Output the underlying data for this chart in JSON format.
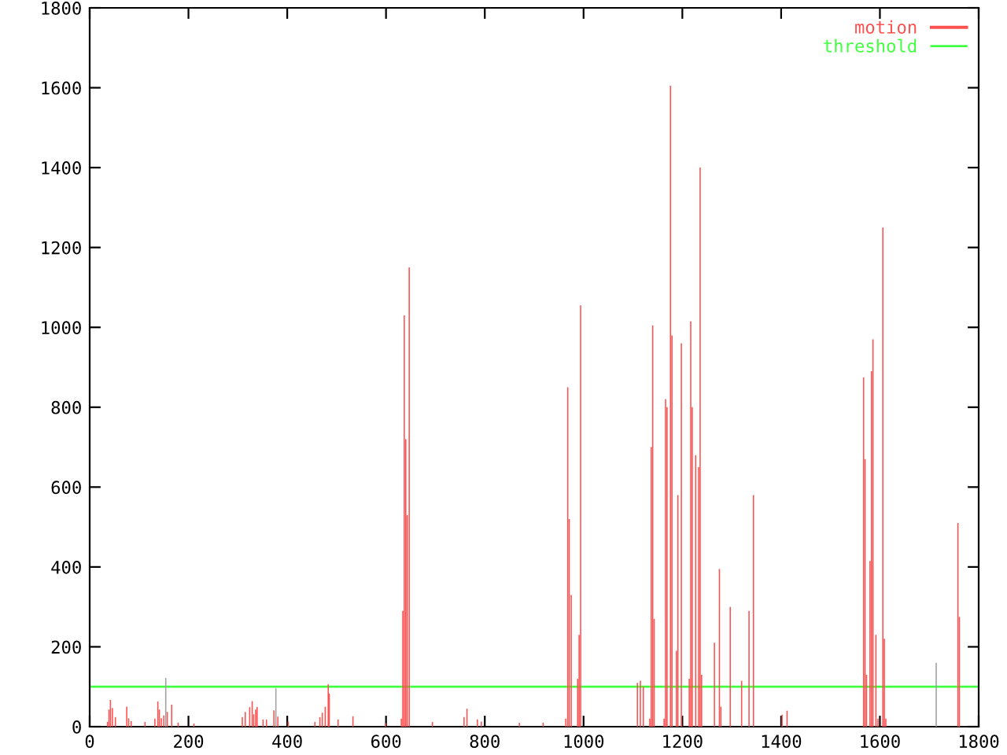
{
  "chart_data": {
    "type": "bar",
    "xlim": [
      0,
      1800
    ],
    "ylim": [
      0,
      1800
    ],
    "xticks": [
      0,
      200,
      400,
      600,
      800,
      1000,
      1200,
      1400,
      1600,
      1800
    ],
    "yticks": [
      0,
      200,
      400,
      600,
      800,
      1000,
      1200,
      1400,
      1600,
      1800
    ],
    "grid": false,
    "legend": "top right",
    "series": [
      {
        "name": "motion",
        "color": "#ff5050",
        "x": [
          36,
          39,
          42,
          46,
          52,
          75,
          79,
          84,
          112,
          132,
          138,
          141,
          145,
          150,
          157,
          166,
          179,
          211,
          309,
          315,
          324,
          329,
          332,
          336,
          339,
          351,
          358,
          373,
          381,
          402,
          456,
          466,
          471,
          477,
          483,
          485,
          503,
          533,
          599,
          631,
          634,
          637,
          640,
          643,
          647,
          694,
          758,
          764,
          785,
          793,
          870,
          918,
          964,
          968,
          971,
          975,
          988,
          991,
          994,
          1109,
          1115,
          1121,
          1134,
          1137,
          1140,
          1143,
          1163,
          1166,
          1169,
          1176,
          1179,
          1188,
          1191,
          1198,
          1214,
          1217,
          1220,
          1227,
          1233,
          1236,
          1239,
          1265,
          1275,
          1278,
          1297,
          1320,
          1335,
          1344,
          1402,
          1412,
          1567,
          1570,
          1573,
          1580,
          1583,
          1586,
          1592,
          1596,
          1606,
          1609,
          1612,
          1758,
          1761
        ],
        "values": [
          12,
          43,
          67,
          47,
          24,
          50,
          21,
          14,
          12,
          20,
          63,
          43,
          21,
          28,
          37,
          55,
          10,
          8,
          24,
          37,
          49,
          64,
          31,
          43,
          49,
          18,
          18,
          41,
          25,
          13,
          12,
          24,
          35,
          50,
          106,
          83,
          18,
          26,
          9,
          20,
          290,
          1030,
          720,
          530,
          1150,
          12,
          24,
          45,
          18,
          13,
          10,
          10,
          20,
          850,
          520,
          330,
          120,
          230,
          1055,
          110,
          115,
          100,
          20,
          700,
          1005,
          270,
          20,
          820,
          800,
          1605,
          980,
          190,
          580,
          960,
          120,
          1015,
          800,
          680,
          650,
          1400,
          130,
          210,
          395,
          50,
          300,
          115,
          290,
          580,
          30,
          40,
          875,
          670,
          130,
          415,
          890,
          970,
          230,
          20,
          1250,
          220,
          20,
          510,
          275
        ]
      },
      {
        "color": "#a0a0a0",
        "x": [
          154,
          377,
          1714
        ],
        "values": [
          122,
          96,
          160
        ]
      },
      {
        "name": "threshold",
        "type": "line",
        "color": "#40ff40",
        "x": [
          0,
          1800
        ],
        "values": [
          100,
          100
        ]
      }
    ]
  }
}
